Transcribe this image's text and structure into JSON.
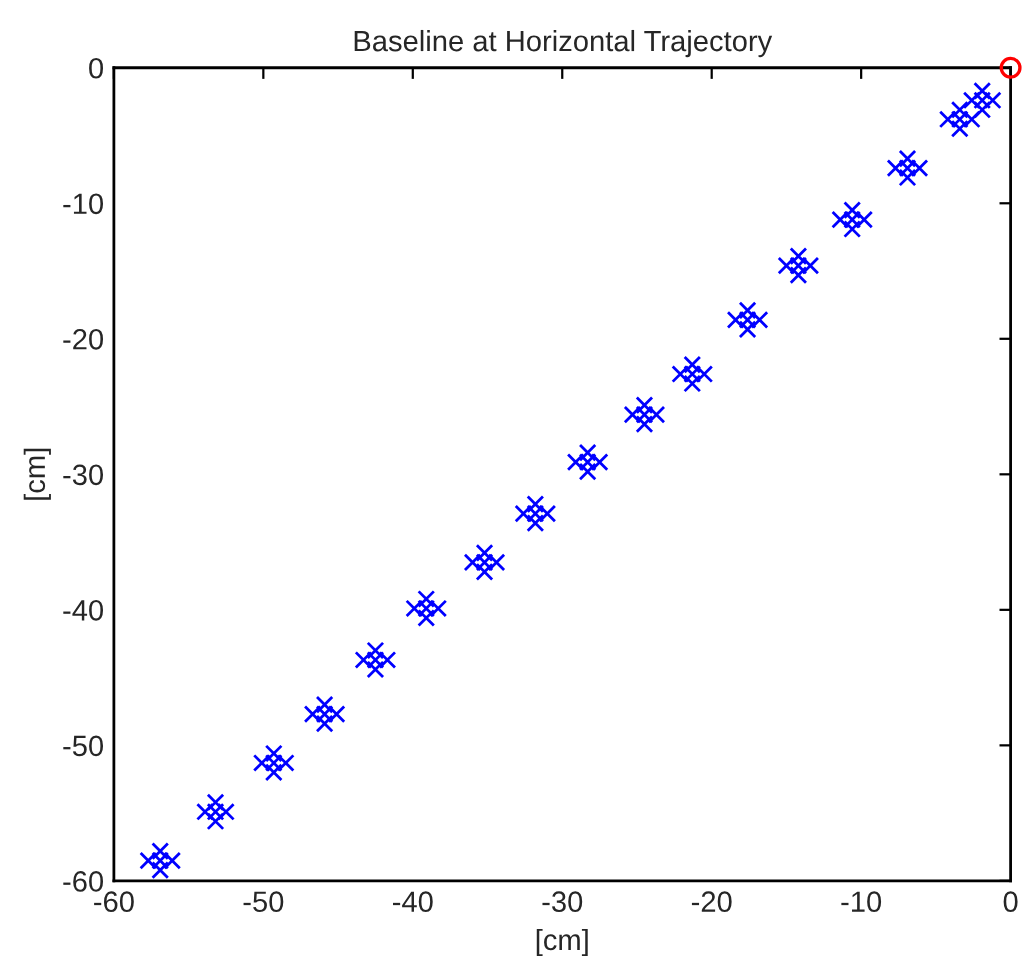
{
  "chart_data": {
    "type": "scatter",
    "title": "Baseline at Horizontal Trajectory",
    "xlabel": "[cm]",
    "ylabel": "[cm]",
    "xlim": [
      -60,
      0
    ],
    "ylim": [
      -60,
      0
    ],
    "xticks": [
      -60,
      -50,
      -40,
      -30,
      -20,
      -10,
      0
    ],
    "yticks": [
      -60,
      -50,
      -40,
      -30,
      -20,
      -10,
      0
    ],
    "grid": false,
    "legend": false,
    "series": [
      {
        "color": "#0000ff",
        "marker": "cross",
        "x": [
          -56.9,
          -57.7,
          -56.1,
          -56.9,
          -56.9,
          -53.2,
          -53.9,
          -52.5,
          -53.2,
          -53.2,
          -49.3,
          -50.1,
          -48.5,
          -49.3,
          -49.3,
          -45.9,
          -46.7,
          -45.1,
          -45.9,
          -45.9,
          -42.5,
          -43.3,
          -41.7,
          -42.5,
          -42.5,
          -39.1,
          -39.9,
          -38.3,
          -39.1,
          -39.1,
          -35.2,
          -36.0,
          -34.4,
          -35.2,
          -35.2,
          -31.8,
          -32.6,
          -31.0,
          -31.8,
          -31.8,
          -28.3,
          -29.1,
          -27.5,
          -28.3,
          -28.3,
          -24.5,
          -25.3,
          -23.7,
          -24.5,
          -24.5,
          -21.3,
          -22.1,
          -20.5,
          -21.3,
          -21.3,
          -17.6,
          -18.4,
          -16.8,
          -17.6,
          -17.6,
          -14.2,
          -15.0,
          -13.4,
          -14.2,
          -14.2,
          -10.6,
          -11.4,
          -9.8,
          -10.6,
          -10.6,
          -6.9,
          -7.7,
          -6.1,
          -6.9,
          -6.9,
          -3.4,
          -4.2,
          -2.6,
          -3.4,
          -3.4,
          -1.9,
          -2.6,
          -1.2,
          -1.9,
          -1.9
        ],
        "values": [
          -58.5,
          -58.5,
          -58.5,
          -57.8,
          -59.2,
          -54.9,
          -54.9,
          -54.9,
          -54.2,
          -55.6,
          -51.3,
          -51.3,
          -51.3,
          -50.6,
          -52.0,
          -47.7,
          -47.7,
          -47.7,
          -47.0,
          -48.4,
          -43.7,
          -43.7,
          -43.7,
          -43.0,
          -44.4,
          -39.9,
          -39.9,
          -39.9,
          -39.2,
          -40.6,
          -36.5,
          -36.5,
          -36.5,
          -35.8,
          -37.2,
          -32.9,
          -32.9,
          -32.9,
          -32.2,
          -33.6,
          -29.1,
          -29.1,
          -29.1,
          -28.4,
          -29.8,
          -25.6,
          -25.6,
          -25.6,
          -24.9,
          -26.3,
          -22.6,
          -22.6,
          -22.6,
          -21.9,
          -23.3,
          -18.6,
          -18.6,
          -18.6,
          -17.9,
          -19.3,
          -14.6,
          -14.6,
          -14.6,
          -13.9,
          -15.3,
          -11.2,
          -11.2,
          -11.2,
          -10.5,
          -11.9,
          -7.4,
          -7.4,
          -7.4,
          -6.7,
          -8.1,
          -3.8,
          -3.8,
          -3.8,
          -3.1,
          -4.5,
          -2.4,
          -2.4,
          -2.4,
          -1.7,
          -3.1
        ]
      },
      {
        "color": "#ff0000",
        "marker": "circle",
        "x": [
          0
        ],
        "values": [
          0
        ]
      }
    ]
  }
}
